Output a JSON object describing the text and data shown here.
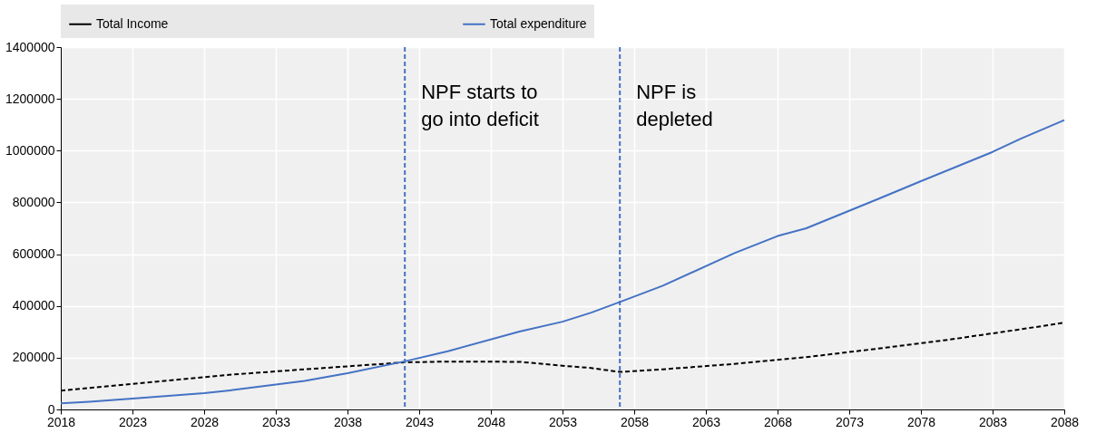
{
  "chart_data": {
    "type": "line",
    "legend": "top",
    "grid": true,
    "xlim": [
      2018,
      2088
    ],
    "xticks": [
      2018,
      2023,
      2028,
      2033,
      2038,
      2043,
      2048,
      2053,
      2058,
      2063,
      2068,
      2073,
      2078,
      2083,
      2088
    ],
    "ylim": [
      0,
      1400000
    ],
    "yticks": [
      0,
      200000,
      400000,
      600000,
      800000,
      1000000,
      1200000,
      1400000
    ],
    "series": [
      {
        "name": "Total Income",
        "color": "#000000",
        "line_style": "dashed",
        "x": [
          2018,
          2030,
          2035,
          2042,
          2045,
          2050,
          2053,
          2055,
          2057,
          2060,
          2065,
          2070,
          2075,
          2080,
          2085,
          2088
        ],
        "values": [
          73000,
          135000,
          155000,
          182000,
          185000,
          184000,
          169000,
          160000,
          145000,
          155000,
          176000,
          202000,
          235000,
          270000,
          310000,
          335000
        ]
      },
      {
        "name": "Total expenditure",
        "color": "#4472c4",
        "line_style": "solid",
        "x": [
          2018,
          2020,
          2023,
          2028,
          2030,
          2035,
          2038,
          2042,
          2045,
          2050,
          2053,
          2055,
          2057,
          2060,
          2065,
          2068,
          2070,
          2075,
          2078,
          2083,
          2085,
          2088
        ],
        "values": [
          24000,
          30000,
          42000,
          63000,
          75000,
          110000,
          140000,
          186000,
          225000,
          301000,
          339000,
          374000,
          415000,
          478000,
          604000,
          670000,
          700000,
          813000,
          882000,
          995000,
          1047000,
          1118000
        ]
      }
    ],
    "ref_lines": [
      {
        "axis": "x",
        "value": 2042,
        "label": "NPF starts to\ngo into deficit",
        "color": "#4472c4",
        "line_style": "dashed"
      },
      {
        "axis": "x",
        "value": 2057,
        "label": "NPF is\ndepleted",
        "color": "#4472c4",
        "line_style": "dashed"
      }
    ]
  }
}
